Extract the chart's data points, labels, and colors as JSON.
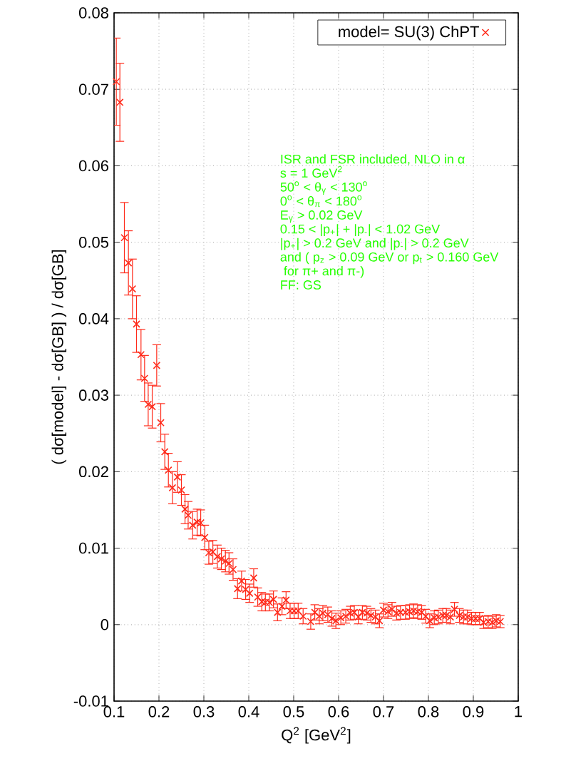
{
  "chart_data": {
    "type": "scatter",
    "xlabel": "Q$^{2}$  [GeV$^{2}$]",
    "ylabel": "( dσ[model] - dσ[GB] ) / dσ[GB]",
    "xlim": [
      0.1,
      1
    ],
    "ylim": [
      -0.01,
      0.08
    ],
    "xticks": [
      0.1,
      0.2,
      0.3,
      0.4,
      0.5,
      0.6,
      0.7,
      0.8,
      0.9,
      1
    ],
    "yticks": [
      -0.01,
      0,
      0.01,
      0.02,
      0.03,
      0.04,
      0.05,
      0.06,
      0.07,
      0.08
    ],
    "grid": true,
    "legend": "top right",
    "marker": "cross",
    "annotations": [
      "ISR and FSR included,    NLO in α",
      "s = 1 GeV$^{2}$",
      "50$^{o}$ < θ$_{γ}$ < 130$^{o}$",
      "0$^{o}$ < θ$_{π}$ < 180$^{o}$",
      "E$_{γ}$ > 0.02 GeV",
      "0.15 < |p$_{+}$| + |p$_{-}$| < 1.02 GeV",
      "|p$_{+}$| > 0.2 GeV and |p$_{-}$| > 0.2 GeV",
      "and ( p$_{z}$ > 0.09 GeV or p$_{t}$ > 0.160 GeV",
      "   for π+ and π-)",
      "FF: GS"
    ],
    "series": [
      {
        "name": "model= SU(3) ChPT",
        "color": "#ff2a1a",
        "x": [
          0.105,
          0.113,
          0.123,
          0.132,
          0.141,
          0.15,
          0.16,
          0.168,
          0.176,
          0.185,
          0.195,
          0.204,
          0.213,
          0.221,
          0.23,
          0.241,
          0.25,
          0.258,
          0.265,
          0.275,
          0.285,
          0.293,
          0.302,
          0.311,
          0.32,
          0.33,
          0.339,
          0.348,
          0.356,
          0.365,
          0.375,
          0.384,
          0.393,
          0.402,
          0.411,
          0.42,
          0.429,
          0.437,
          0.446,
          0.455,
          0.464,
          0.474,
          0.483,
          0.492,
          0.501,
          0.51,
          0.521,
          0.538,
          0.547,
          0.557,
          0.565,
          0.576,
          0.585,
          0.594,
          0.605,
          0.616,
          0.626,
          0.635,
          0.644,
          0.653,
          0.663,
          0.672,
          0.682,
          0.691,
          0.7,
          0.71,
          0.719,
          0.729,
          0.738,
          0.749,
          0.758,
          0.767,
          0.776,
          0.785,
          0.794,
          0.803,
          0.813,
          0.822,
          0.832,
          0.84,
          0.849,
          0.858,
          0.869,
          0.878,
          0.887,
          0.896,
          0.905,
          0.914,
          0.923,
          0.933,
          0.942,
          0.951,
          0.96
        ],
        "values": [
          0.071,
          0.0683,
          0.0506,
          0.0473,
          0.0439,
          0.0393,
          0.0353,
          0.0322,
          0.0288,
          0.0285,
          0.0339,
          0.0264,
          0.0226,
          0.0202,
          0.0179,
          0.0193,
          0.0176,
          0.0151,
          0.0143,
          0.013,
          0.0134,
          0.0133,
          0.0114,
          0.0094,
          0.0095,
          0.0089,
          0.0086,
          0.0083,
          0.008,
          0.0072,
          0.0047,
          0.0057,
          0.0046,
          0.0041,
          0.0061,
          0.0036,
          0.003,
          0.0029,
          0.0029,
          0.0033,
          0.0016,
          0.0024,
          0.0032,
          0.0018,
          0.0018,
          0.0018,
          0.0011,
          0.0004,
          0.0016,
          0.0011,
          0.0015,
          0.0013,
          0.0008,
          0.0005,
          0.0009,
          0.0011,
          0.0015,
          0.0016,
          0.001,
          0.0016,
          0.0015,
          0.0012,
          0.001,
          0.0005,
          0.0019,
          0.0017,
          0.002,
          0.0015,
          0.0016,
          0.0016,
          0.0017,
          0.0018,
          0.0017,
          0.0016,
          0.0011,
          0.0005,
          0.0009,
          0.001,
          0.0012,
          0.0012,
          0.001,
          0.002,
          0.0012,
          0.001,
          0.001,
          0.0008,
          0.0008,
          0.0008,
          0.0003,
          0.0004,
          0.0003,
          0.0005,
          0.0004
        ],
        "errors": [
          0.0057,
          0.0051,
          0.0046,
          0.0042,
          0.0039,
          0.0037,
          0.0033,
          0.003,
          0.0028,
          0.0028,
          0.0027,
          0.0025,
          0.0023,
          0.0022,
          0.0021,
          0.002,
          0.002,
          0.0019,
          0.0018,
          0.0018,
          0.0017,
          0.0017,
          0.0016,
          0.0015,
          0.0015,
          0.0015,
          0.0014,
          0.0014,
          0.0014,
          0.0014,
          0.0013,
          0.0013,
          0.0013,
          0.0012,
          0.0012,
          0.0012,
          0.0012,
          0.0011,
          0.0011,
          0.0011,
          0.0011,
          0.0011,
          0.0011,
          0.001,
          0.001,
          0.001,
          0.001,
          0.001,
          0.001,
          0.001,
          0.001,
          0.001,
          0.001,
          0.001,
          0.0009,
          0.0009,
          0.0009,
          0.0009,
          0.0009,
          0.0009,
          0.0009,
          0.0009,
          0.0009,
          0.0009,
          0.0009,
          0.0009,
          0.0009,
          0.0009,
          0.0009,
          0.0009,
          0.0009,
          0.0009,
          0.0009,
          0.0009,
          0.0009,
          0.0009,
          0.0009,
          0.0009,
          0.0009,
          0.0009,
          0.0009,
          0.0009,
          0.0009,
          0.0009,
          0.0009,
          0.0008,
          0.0008,
          0.0008,
          0.0008,
          0.0008,
          0.0008,
          0.0008,
          0.0008
        ]
      }
    ]
  }
}
